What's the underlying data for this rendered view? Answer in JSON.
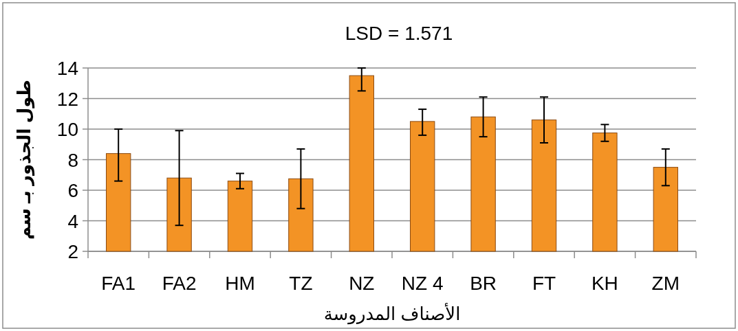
{
  "chart_data": {
    "type": "bar",
    "title": "LSD = 1.571",
    "xlabel": "الأصناف المدروسة",
    "ylabel": "طول الجذور بـ سم",
    "categories": [
      "FA1",
      "FA2",
      "HM",
      "TZ",
      "NZ",
      "NZ 4",
      "BR",
      "FT",
      "KH",
      "ZM"
    ],
    "values": [
      8.4,
      6.8,
      6.6,
      6.75,
      13.5,
      10.5,
      10.8,
      10.6,
      9.75,
      7.5
    ],
    "errors": [
      [
        6.6,
        10.0
      ],
      [
        3.7,
        9.9
      ],
      [
        6.1,
        7.1
      ],
      [
        4.8,
        8.7
      ],
      [
        12.5,
        14.0
      ],
      [
        9.6,
        11.3
      ],
      [
        9.5,
        12.1
      ],
      [
        9.1,
        12.1
      ],
      [
        9.2,
        10.3
      ],
      [
        6.3,
        8.7
      ]
    ],
    "color": "#f39325",
    "ylim": [
      2,
      14
    ],
    "yticks": [
      2,
      4,
      6,
      8,
      10,
      12,
      14
    ],
    "grid": "y"
  }
}
